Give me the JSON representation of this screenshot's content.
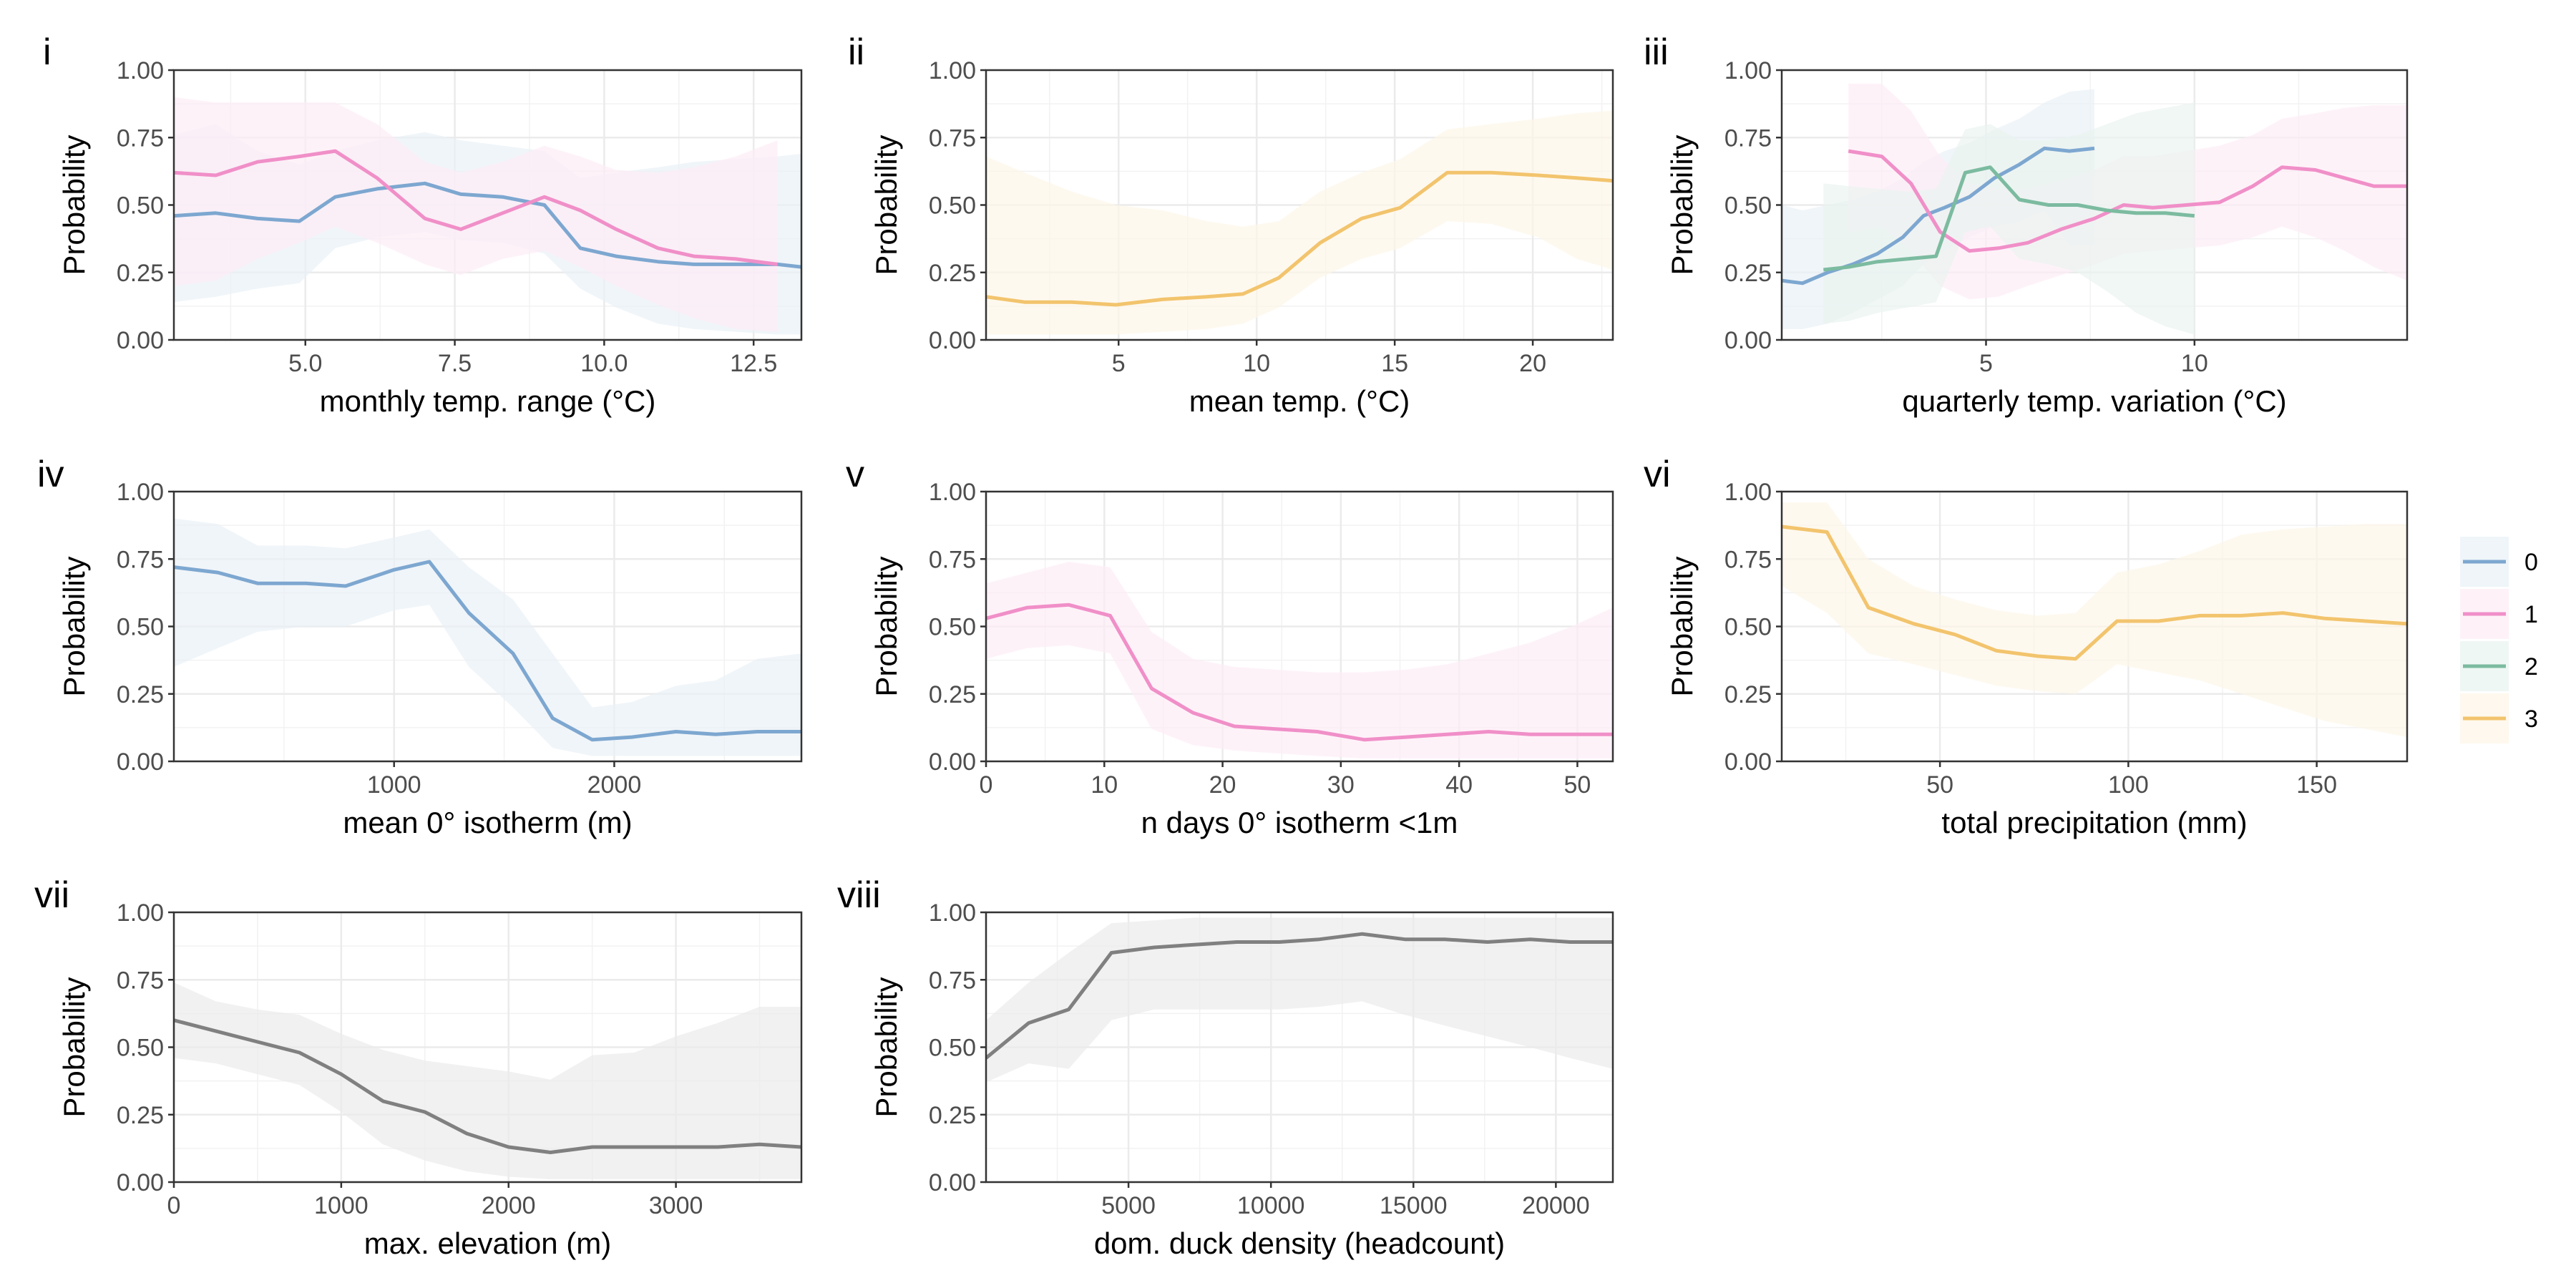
{
  "colors": {
    "0": "#7da7d0",
    "1": "#f08fc8",
    "2": "#7cbba0",
    "3": "#f2c46d",
    "other": "#808080"
  },
  "legend": [
    {
      "key": "0",
      "label": "0"
    },
    {
      "key": "1",
      "label": "1"
    },
    {
      "key": "2",
      "label": "2"
    },
    {
      "key": "3",
      "label": "3"
    }
  ],
  "chart_data": [
    {
      "type": "line",
      "id": "i",
      "letter": "i",
      "xlabel": "monthly temp. range (°C)",
      "ylabel": "Probability",
      "xlim": [
        2.8,
        13.3
      ],
      "ylim": [
        0,
        1
      ],
      "xticks": [
        5.0,
        7.5,
        10.0,
        12.5
      ],
      "xtick_labels": [
        "5.0",
        "7.5",
        "10.0",
        "12.5"
      ],
      "yticks": [
        0,
        0.25,
        0.5,
        0.75,
        1
      ],
      "ytick_labels": [
        "0.00",
        "0.25",
        "0.50",
        "0.75",
        "1.00"
      ],
      "series": [
        {
          "key": "0",
          "x": [
            2.8,
            3.5,
            4.2,
            4.9,
            5.5,
            6.2,
            7.0,
            7.6,
            8.3,
            9.0,
            9.6,
            10.2,
            10.9,
            11.5,
            12.2,
            12.9,
            13.3
          ],
          "y": [
            0.46,
            0.47,
            0.45,
            0.44,
            0.53,
            0.56,
            0.58,
            0.54,
            0.53,
            0.5,
            0.34,
            0.31,
            0.29,
            0.28,
            0.28,
            0.28,
            0.27
          ],
          "lo": [
            0.14,
            0.16,
            0.19,
            0.21,
            0.34,
            0.38,
            0.4,
            0.37,
            0.36,
            0.32,
            0.19,
            0.12,
            0.06,
            0.04,
            0.03,
            0.02,
            0.02
          ],
          "hi": [
            0.76,
            0.8,
            0.7,
            0.65,
            0.7,
            0.74,
            0.77,
            0.74,
            0.72,
            0.7,
            0.6,
            0.62,
            0.64,
            0.66,
            0.67,
            0.68,
            0.69
          ]
        },
        {
          "key": "1",
          "x": [
            2.8,
            3.5,
            4.2,
            4.9,
            5.5,
            6.2,
            7.0,
            7.6,
            8.3,
            9.0,
            9.6,
            10.2,
            10.9,
            11.5,
            12.2,
            12.9
          ],
          "y": [
            0.62,
            0.61,
            0.66,
            0.68,
            0.7,
            0.6,
            0.45,
            0.41,
            0.47,
            0.53,
            0.48,
            0.41,
            0.34,
            0.31,
            0.3,
            0.28
          ],
          "lo": [
            0.2,
            0.22,
            0.3,
            0.36,
            0.42,
            0.36,
            0.28,
            0.24,
            0.3,
            0.33,
            0.27,
            0.2,
            0.13,
            0.08,
            0.04,
            0.03
          ],
          "hi": [
            0.9,
            0.88,
            0.88,
            0.88,
            0.88,
            0.8,
            0.66,
            0.62,
            0.66,
            0.72,
            0.68,
            0.63,
            0.62,
            0.64,
            0.68,
            0.74
          ]
        }
      ]
    },
    {
      "type": "line",
      "id": "ii",
      "letter": "ii",
      "xlabel": "mean temp. (°C)",
      "ylabel": "Probability",
      "xlim": [
        0.2,
        22.9
      ],
      "ylim": [
        0,
        1
      ],
      "xticks": [
        5,
        10,
        15,
        20
      ],
      "xtick_labels": [
        "5",
        "10",
        "15",
        "20"
      ],
      "yticks": [
        0,
        0.25,
        0.5,
        0.75,
        1
      ],
      "ytick_labels": [
        "0.00",
        "0.25",
        "0.50",
        "0.75",
        "1.00"
      ],
      "series": [
        {
          "key": "3",
          "x": [
            0.2,
            1.6,
            3.3,
            4.9,
            6.6,
            8.2,
            9.5,
            10.8,
            12.3,
            13.8,
            15.2,
            16.9,
            18.5,
            20.2,
            21.6,
            22.9
          ],
          "y": [
            0.16,
            0.14,
            0.14,
            0.13,
            0.15,
            0.16,
            0.17,
            0.23,
            0.36,
            0.45,
            0.49,
            0.62,
            0.62,
            0.61,
            0.6,
            0.59
          ],
          "lo": [
            0.02,
            0.02,
            0.02,
            0.02,
            0.03,
            0.04,
            0.06,
            0.12,
            0.23,
            0.3,
            0.34,
            0.44,
            0.43,
            0.38,
            0.3,
            0.26
          ],
          "hi": [
            0.68,
            0.62,
            0.55,
            0.5,
            0.48,
            0.44,
            0.42,
            0.44,
            0.55,
            0.62,
            0.67,
            0.78,
            0.8,
            0.82,
            0.84,
            0.85
          ]
        }
      ]
    },
    {
      "type": "line",
      "id": "iii",
      "letter": "iii",
      "xlabel": "quarterly temp. variation (°C)",
      "ylabel": "Probability",
      "xlim": [
        0.1,
        15.1
      ],
      "ylim": [
        0,
        1
      ],
      "xticks": [
        5,
        10
      ],
      "xtick_labels": [
        "5",
        "10"
      ],
      "yticks": [
        0,
        0.25,
        0.5,
        0.75,
        1
      ],
      "ytick_labels": [
        "0.00",
        "0.25",
        "0.50",
        "0.75",
        "1.00"
      ],
      "series": [
        {
          "key": "0",
          "x": [
            0.1,
            0.6,
            1.2,
            1.8,
            2.4,
            3.0,
            3.5,
            4.0,
            4.6,
            5.2,
            5.8,
            6.4,
            7.0,
            7.6
          ],
          "y": [
            0.22,
            0.21,
            0.25,
            0.28,
            0.32,
            0.38,
            0.46,
            0.49,
            0.53,
            0.6,
            0.65,
            0.71,
            0.7,
            0.71
          ],
          "lo": [
            0.04,
            0.04,
            0.06,
            0.1,
            0.15,
            0.2,
            0.28,
            0.33,
            0.38,
            0.42,
            0.44,
            0.48,
            0.35,
            0.35
          ],
          "hi": [
            0.5,
            0.48,
            0.5,
            0.52,
            0.55,
            0.6,
            0.66,
            0.7,
            0.73,
            0.78,
            0.82,
            0.88,
            0.92,
            0.93
          ]
        },
        {
          "key": "1",
          "x": [
            1.7,
            2.5,
            3.2,
            3.9,
            4.6,
            5.3,
            6.0,
            6.8,
            7.6,
            8.3,
            9.0,
            9.8,
            10.6,
            11.4,
            12.1,
            12.9,
            13.6,
            14.3,
            15.1
          ],
          "y": [
            0.7,
            0.68,
            0.58,
            0.4,
            0.33,
            0.34,
            0.36,
            0.41,
            0.45,
            0.5,
            0.49,
            0.5,
            0.51,
            0.57,
            0.64,
            0.63,
            0.6,
            0.57,
            0.57
          ],
          "lo": [
            0.4,
            0.42,
            0.33,
            0.2,
            0.15,
            0.16,
            0.2,
            0.24,
            0.28,
            0.32,
            0.33,
            0.34,
            0.35,
            0.38,
            0.42,
            0.38,
            0.33,
            0.27,
            0.22
          ],
          "hi": [
            0.95,
            0.95,
            0.85,
            0.68,
            0.58,
            0.56,
            0.56,
            0.59,
            0.63,
            0.68,
            0.68,
            0.7,
            0.72,
            0.76,
            0.82,
            0.84,
            0.86,
            0.87,
            0.87
          ]
        },
        {
          "key": "2",
          "x": [
            1.1,
            1.7,
            2.4,
            3.1,
            3.8,
            4.5,
            5.1,
            5.8,
            6.5,
            7.2,
            7.9,
            8.6,
            9.3,
            10.0
          ],
          "y": [
            0.26,
            0.27,
            0.29,
            0.3,
            0.31,
            0.62,
            0.64,
            0.52,
            0.5,
            0.5,
            0.48,
            0.47,
            0.47,
            0.46
          ],
          "lo": [
            0.06,
            0.07,
            0.1,
            0.12,
            0.14,
            0.4,
            0.42,
            0.3,
            0.28,
            0.25,
            0.18,
            0.1,
            0.05,
            0.02
          ],
          "hi": [
            0.58,
            0.57,
            0.56,
            0.55,
            0.56,
            0.78,
            0.8,
            0.74,
            0.74,
            0.76,
            0.8,
            0.84,
            0.86,
            0.88
          ]
        }
      ]
    },
    {
      "type": "line",
      "id": "iv",
      "letter": "iv",
      "xlabel": "mean 0° isotherm (m)",
      "ylabel": "Probability",
      "xlim": [
        0,
        2850
      ],
      "ylim": [
        0,
        1
      ],
      "xticks": [
        1000,
        2000
      ],
      "xtick_labels": [
        "1000",
        "2000"
      ],
      "yticks": [
        0,
        0.25,
        0.5,
        0.75,
        1
      ],
      "ytick_labels": [
        "0.00",
        "0.25",
        "0.50",
        "0.75",
        "1.00"
      ],
      "series": [
        {
          "key": "0",
          "x": [
            0,
            200,
            380,
            600,
            780,
            1000,
            1160,
            1340,
            1540,
            1720,
            1900,
            2080,
            2280,
            2460,
            2650,
            2850
          ],
          "y": [
            0.72,
            0.7,
            0.66,
            0.66,
            0.65,
            0.71,
            0.74,
            0.55,
            0.4,
            0.16,
            0.08,
            0.09,
            0.11,
            0.1,
            0.11,
            0.11
          ],
          "lo": [
            0.35,
            0.42,
            0.48,
            0.5,
            0.5,
            0.56,
            0.58,
            0.35,
            0.2,
            0.05,
            0.02,
            0.02,
            0.02,
            0.02,
            0.02,
            0.02
          ],
          "hi": [
            0.9,
            0.88,
            0.8,
            0.8,
            0.79,
            0.83,
            0.86,
            0.72,
            0.6,
            0.4,
            0.2,
            0.22,
            0.28,
            0.3,
            0.38,
            0.4
          ]
        }
      ]
    },
    {
      "type": "line",
      "id": "v",
      "letter": "v",
      "xlabel": "n days 0° isotherm <1m",
      "ylabel": "Probability",
      "xlim": [
        0,
        53
      ],
      "ylim": [
        0,
        1
      ],
      "xticks": [
        0,
        10,
        20,
        30,
        40,
        50
      ],
      "xtick_labels": [
        "0",
        "10",
        "20",
        "30",
        "40",
        "50"
      ],
      "yticks": [
        0,
        0.25,
        0.5,
        0.75,
        1
      ],
      "ytick_labels": [
        "0.00",
        "0.25",
        "0.50",
        "0.75",
        "1.00"
      ],
      "series": [
        {
          "key": "1",
          "x": [
            0,
            3.5,
            7,
            10.5,
            14,
            17.5,
            21,
            24.5,
            28,
            32,
            35.5,
            39,
            42.5,
            46,
            49.5,
            53
          ],
          "y": [
            0.53,
            0.57,
            0.58,
            0.54,
            0.27,
            0.18,
            0.13,
            0.12,
            0.11,
            0.08,
            0.09,
            0.1,
            0.11,
            0.1,
            0.1,
            0.1
          ],
          "lo": [
            0.38,
            0.42,
            0.43,
            0.4,
            0.12,
            0.06,
            0.04,
            0.03,
            0.02,
            0.01,
            0.01,
            0.01,
            0.01,
            0.01,
            0.01,
            0.01
          ],
          "hi": [
            0.66,
            0.7,
            0.74,
            0.72,
            0.48,
            0.38,
            0.35,
            0.34,
            0.33,
            0.33,
            0.34,
            0.36,
            0.4,
            0.44,
            0.5,
            0.57
          ]
        }
      ]
    },
    {
      "type": "line",
      "id": "vi",
      "letter": "vi",
      "xlabel": "total precipitation (mm)",
      "ylabel": "Probability",
      "xlim": [
        8,
        174
      ],
      "ylim": [
        0,
        1
      ],
      "xticks": [
        50,
        100,
        150
      ],
      "xtick_labels": [
        "50",
        "100",
        "150"
      ],
      "yticks": [
        0,
        0.25,
        0.5,
        0.75,
        1
      ],
      "ytick_labels": [
        "0.00",
        "0.25",
        "0.50",
        "0.75",
        "1.00"
      ],
      "series": [
        {
          "key": "3",
          "x": [
            8,
            20,
            31,
            43,
            54,
            65,
            76,
            86,
            97,
            108,
            119,
            130,
            141,
            152,
            163,
            174
          ],
          "y": [
            0.87,
            0.85,
            0.57,
            0.51,
            0.47,
            0.41,
            0.39,
            0.38,
            0.52,
            0.52,
            0.54,
            0.54,
            0.55,
            0.53,
            0.52,
            0.51
          ],
          "lo": [
            0.65,
            0.55,
            0.4,
            0.36,
            0.32,
            0.28,
            0.26,
            0.25,
            0.36,
            0.33,
            0.3,
            0.25,
            0.2,
            0.15,
            0.12,
            0.09
          ],
          "hi": [
            0.96,
            0.96,
            0.75,
            0.65,
            0.6,
            0.56,
            0.54,
            0.55,
            0.7,
            0.73,
            0.78,
            0.84,
            0.86,
            0.87,
            0.88,
            0.88
          ]
        }
      ]
    },
    {
      "type": "line",
      "id": "vii",
      "letter": "vii",
      "xlabel": "max. elevation (m)",
      "ylabel": "Probability",
      "xlim": [
        0,
        3750
      ],
      "ylim": [
        0,
        1
      ],
      "xticks": [
        0,
        1000,
        2000,
        3000
      ],
      "xtick_labels": [
        "0",
        "1000",
        "2000",
        "3000"
      ],
      "yticks": [
        0,
        0.25,
        0.5,
        0.75,
        1
      ],
      "ytick_labels": [
        "0.00",
        "0.25",
        "0.50",
        "0.75",
        "1.00"
      ],
      "series": [
        {
          "key": "other",
          "x": [
            0,
            250,
            500,
            750,
            1000,
            1250,
            1500,
            1750,
            2000,
            2250,
            2500,
            2750,
            3000,
            3250,
            3500,
            3750
          ],
          "y": [
            0.6,
            0.56,
            0.52,
            0.48,
            0.4,
            0.3,
            0.26,
            0.18,
            0.13,
            0.11,
            0.13,
            0.13,
            0.13,
            0.13,
            0.14,
            0.13
          ],
          "lo": [
            0.46,
            0.44,
            0.4,
            0.36,
            0.26,
            0.14,
            0.08,
            0.04,
            0.02,
            0.01,
            0.01,
            0.01,
            0.01,
            0.01,
            0.01,
            0.01
          ],
          "hi": [
            0.74,
            0.67,
            0.64,
            0.62,
            0.55,
            0.49,
            0.45,
            0.43,
            0.41,
            0.38,
            0.47,
            0.48,
            0.54,
            0.59,
            0.65,
            0.65
          ]
        }
      ]
    },
    {
      "type": "line",
      "id": "viii",
      "letter": "viii",
      "xlabel": "dom. duck density (headcount)",
      "ylabel": "Probability",
      "xlim": [
        0,
        22000
      ],
      "ylim": [
        0,
        1
      ],
      "xticks": [
        5000,
        10000,
        15000,
        20000
      ],
      "xtick_labels": [
        "5000",
        "10000",
        "15000",
        "20000"
      ],
      "yticks": [
        0,
        0.25,
        0.5,
        0.75,
        1
      ],
      "ytick_labels": [
        "0.00",
        "0.25",
        "0.50",
        "0.75",
        "1.00"
      ],
      "series": [
        {
          "key": "other",
          "x": [
            0,
            1500,
            2900,
            4400,
            5900,
            7300,
            8800,
            10300,
            11700,
            13200,
            14700,
            16100,
            17600,
            19100,
            20500,
            22000
          ],
          "y": [
            0.46,
            0.59,
            0.64,
            0.85,
            0.87,
            0.88,
            0.89,
            0.89,
            0.9,
            0.92,
            0.9,
            0.9,
            0.89,
            0.9,
            0.89,
            0.89
          ],
          "lo": [
            0.37,
            0.44,
            0.42,
            0.6,
            0.64,
            0.64,
            0.64,
            0.64,
            0.65,
            0.67,
            0.62,
            0.58,
            0.54,
            0.5,
            0.46,
            0.42
          ],
          "hi": [
            0.6,
            0.74,
            0.85,
            0.96,
            0.97,
            0.98,
            0.98,
            0.98,
            0.98,
            0.98,
            0.98,
            0.98,
            0.98,
            0.98,
            0.98,
            0.98
          ]
        }
      ]
    }
  ]
}
